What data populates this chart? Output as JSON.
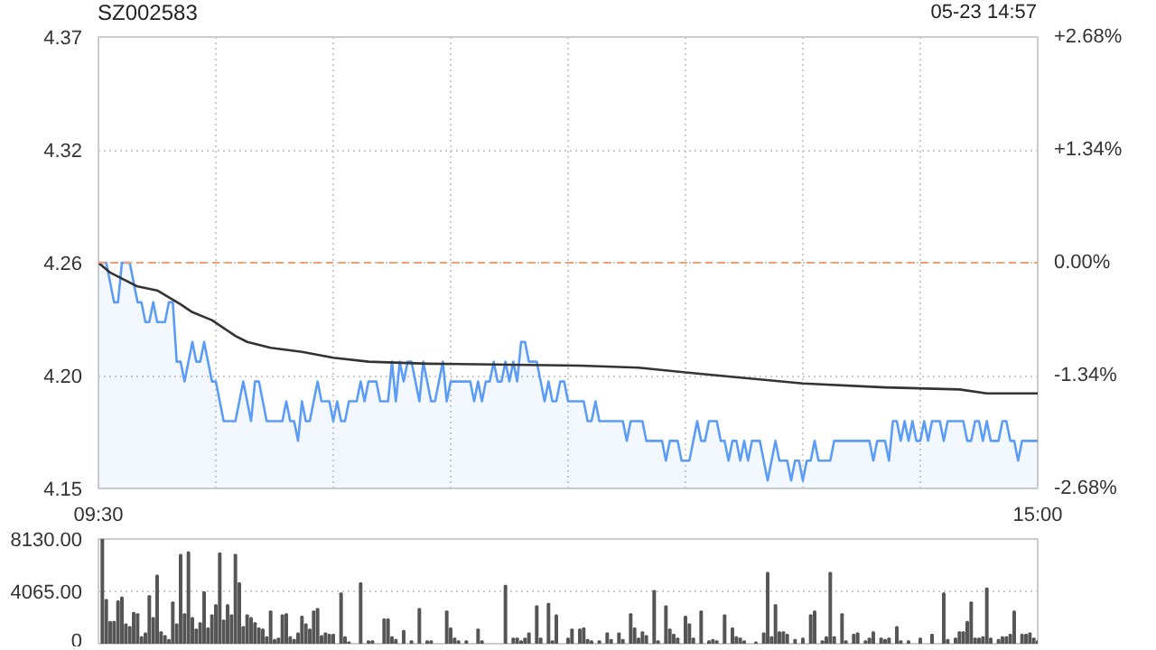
{
  "chart_data": [
    {
      "type": "line",
      "title": "SZ002583",
      "annotations": [
        "05-23 14:57"
      ],
      "categories": [
        "09:30",
        null,
        null,
        null,
        null,
        null,
        null,
        null,
        null,
        null,
        null,
        null,
        null,
        null,
        null,
        null,
        null,
        null,
        null,
        null,
        null,
        null,
        null,
        null,
        null,
        null,
        null,
        null,
        null,
        null,
        null,
        null,
        null,
        null,
        null,
        null,
        null,
        null,
        null,
        null,
        null,
        null,
        null,
        null,
        null,
        null,
        null,
        null,
        null,
        null,
        null,
        null,
        null,
        null,
        null,
        null,
        null,
        null,
        null,
        null,
        null,
        null,
        null,
        null,
        null,
        null,
        null,
        null,
        null,
        null,
        null,
        null,
        null,
        null,
        null,
        null,
        null,
        null,
        null,
        null,
        null,
        null,
        null,
        null,
        null,
        null,
        null,
        null,
        null,
        null,
        null,
        null,
        null,
        null,
        null,
        null,
        null,
        null,
        null,
        null,
        null,
        null,
        null,
        null,
        null,
        null,
        null,
        null,
        null,
        null,
        null,
        null,
        null,
        null,
        null,
        null,
        null,
        null,
        null,
        null,
        null,
        null,
        null,
        null,
        null,
        null,
        null,
        null,
        null,
        null,
        null,
        null,
        null,
        null,
        null,
        null,
        null,
        null,
        null,
        null,
        null,
        null,
        null,
        null,
        null,
        null,
        null,
        null,
        null,
        null,
        null,
        null,
        null,
        null,
        null,
        null,
        null,
        null,
        null,
        null,
        null,
        null,
        null,
        null,
        null,
        null,
        null,
        null,
        null,
        null,
        null,
        null,
        null,
        null,
        null,
        null,
        null,
        null,
        null,
        null,
        null,
        null,
        null,
        null,
        null,
        null,
        null,
        null,
        null,
        null,
        null,
        null,
        null,
        null,
        null,
        null,
        null,
        null,
        null,
        null,
        null,
        null,
        null,
        null,
        null,
        null,
        null,
        null,
        null,
        null,
        null,
        null,
        null,
        null,
        null,
        null,
        null,
        null,
        null,
        null,
        null,
        null,
        null,
        null,
        null,
        null,
        null,
        null,
        null,
        null,
        null,
        null,
        null,
        null,
        null,
        null,
        null,
        null,
        null,
        null,
        "15:00"
      ],
      "series": [
        {
          "type": "area",
          "color": "#5b9cf6",
          "values": [
            4.26,
            4.26,
            4.26,
            4.25,
            4.24,
            4.24,
            4.26,
            4.26,
            4.26,
            4.25,
            4.24,
            4.24,
            4.23,
            4.23,
            4.24,
            4.23,
            4.23,
            4.23,
            4.24,
            4.24,
            4.21,
            4.21,
            4.2,
            4.21,
            4.22,
            4.21,
            4.21,
            4.22,
            4.21,
            4.2,
            4.2,
            4.19,
            4.18,
            4.18,
            4.18,
            4.18,
            4.19,
            4.2,
            4.19,
            4.18,
            4.2,
            4.2,
            4.19,
            4.18,
            4.18,
            4.18,
            4.18,
            4.18,
            4.19,
            4.18,
            4.18,
            4.17,
            4.19,
            4.18,
            4.18,
            4.19,
            4.2,
            4.19,
            4.19,
            4.19,
            4.18,
            4.19,
            4.18,
            4.18,
            4.19,
            4.19,
            4.19,
            4.2,
            4.19,
            4.2,
            4.2,
            4.2,
            4.19,
            4.19,
            4.19,
            4.21,
            4.19,
            4.21,
            4.2,
            4.21,
            4.21,
            4.2,
            4.19,
            4.21,
            4.2,
            4.19,
            4.19,
            4.2,
            4.21,
            4.19,
            4.2,
            4.2,
            4.2,
            4.2,
            4.2,
            4.2,
            4.19,
            4.2,
            4.19,
            4.2,
            4.2,
            4.21,
            4.2,
            4.2,
            4.21,
            4.2,
            4.21,
            4.2,
            4.22,
            4.22,
            4.21,
            4.21,
            4.21,
            4.2,
            4.19,
            4.2,
            4.19,
            4.19,
            4.2,
            4.2,
            4.19,
            4.19,
            4.19,
            4.19,
            4.19,
            4.18,
            4.18,
            4.19,
            4.18,
            4.18,
            4.18,
            4.18,
            4.18,
            4.18,
            4.18,
            4.17,
            4.18,
            4.18,
            4.18,
            4.18,
            4.17,
            4.17,
            4.17,
            4.17,
            4.17,
            4.16,
            4.17,
            4.17,
            4.17,
            4.16,
            4.16,
            4.16,
            4.17,
            4.18,
            4.17,
            4.17,
            4.18,
            4.18,
            4.18,
            4.17,
            4.17,
            4.16,
            4.17,
            4.17,
            4.16,
            4.17,
            4.16,
            4.17,
            4.17,
            4.17,
            4.16,
            4.15,
            4.16,
            4.17,
            4.16,
            4.16,
            4.16,
            4.15,
            4.16,
            4.16,
            4.15,
            4.16,
            4.16,
            4.17,
            4.16,
            4.16,
            4.16,
            4.16,
            4.17,
            4.17,
            4.17,
            4.17,
            4.17,
            4.17,
            4.17,
            4.17,
            4.17,
            4.17,
            4.16,
            4.17,
            4.17,
            4.17,
            4.16,
            4.18,
            4.18,
            4.17,
            4.18,
            4.17,
            4.18,
            4.17,
            4.17,
            4.18,
            4.17,
            4.18,
            4.18,
            4.18,
            4.17,
            4.18,
            4.18,
            4.18,
            4.18,
            4.18,
            4.17,
            4.17,
            4.18,
            4.18,
            4.17,
            4.18,
            4.17,
            4.17,
            4.17,
            4.18,
            4.18,
            4.17,
            4.17,
            4.16,
            4.17,
            4.17,
            4.17,
            4.17,
            4.17
          ]
        },
        {
          "type": "line",
          "color": "#333333",
          "values": [
            4.26,
            null,
            null,
            4.255,
            null,
            null,
            4.252,
            null,
            null,
            null,
            4.248,
            null,
            null,
            null,
            null,
            4.246,
            null,
            null,
            null,
            null,
            null,
            4.239,
            null,
            null,
            4.235,
            null,
            null,
            null,
            null,
            4.231,
            null,
            null,
            null,
            null,
            null,
            4.223,
            null,
            null,
            4.22,
            null,
            null,
            null,
            null,
            null,
            4.217,
            null,
            null,
            null,
            null,
            null,
            null,
            null,
            4.215,
            null,
            null,
            null,
            null,
            null,
            null,
            null,
            4.212,
            null,
            null,
            null,
            null,
            null,
            null,
            null,
            null,
            4.21,
            null,
            null,
            null,
            null,
            null,
            null,
            null,
            null,
            null,
            null,
            null,
            null,
            null,
            null,
            4.209,
            null,
            null,
            null,
            null,
            null,
            null,
            null,
            null,
            null,
            null,
            null,
            null,
            null,
            null,
            null,
            null,
            null,
            null,
            null,
            null,
            null,
            null,
            null,
            null,
            null,
            null,
            null,
            null,
            null,
            null,
            null,
            null,
            null,
            null,
            null,
            null,
            null,
            null,
            4.208,
            null,
            null,
            null,
            null,
            null,
            null,
            null,
            null,
            null,
            null,
            null,
            null,
            null,
            null,
            4.207,
            null,
            null,
            null,
            null,
            null,
            null,
            null,
            null,
            null,
            null,
            null,
            null,
            null,
            null,
            4.204,
            null,
            null,
            null,
            null,
            null,
            null,
            null,
            null,
            null,
            null,
            4.202,
            null,
            null,
            null,
            null,
            null,
            null,
            null,
            null,
            null,
            null,
            null,
            null,
            null,
            null,
            null,
            4.199,
            null,
            null,
            null,
            null,
            null,
            null,
            null,
            null,
            null,
            null,
            null,
            null,
            null,
            null,
            null,
            null,
            null,
            null,
            null,
            null,
            4.197,
            null,
            null,
            null,
            null,
            null,
            null,
            null,
            null,
            null,
            null,
            null,
            null,
            null,
            null,
            null,
            null,
            null,
            null,
            4.196,
            null,
            null,
            null,
            null,
            null,
            null,
            4.194,
            null,
            null,
            null,
            null,
            null,
            null,
            null,
            null,
            null,
            null,
            null,
            null,
            4.194
          ]
        }
      ],
      "ylim": [
        4.146,
        4.374
      ],
      "yticks": [
        {
          "value": 4.146,
          "label": "4.15"
        },
        {
          "value": 4.203,
          "label": "4.20"
        },
        {
          "value": 4.26,
          "label": "4.26"
        },
        {
          "value": 4.317,
          "label": "4.32"
        },
        {
          "value": 4.374,
          "label": "4.37"
        }
      ],
      "y2lim": [
        -2.68,
        2.68
      ],
      "y2ticks": [
        {
          "value": -2.68,
          "label": "-2.68%"
        },
        {
          "value": -1.34,
          "label": "-1.34%"
        },
        {
          "value": 0,
          "label": "0.00%"
        },
        {
          "value": 1.34,
          "label": "+1.34%"
        },
        {
          "value": 2.68,
          "label": "+2.68%"
        }
      ],
      "ref_lines": [
        {
          "axis": "y",
          "value": 4.26,
          "color": "#f0a070",
          "line_style": "dashed"
        }
      ],
      "grid": true,
      "line_style": "solid"
    },
    {
      "type": "bar",
      "color": "#555555",
      "categories": [
        null,
        null,
        null,
        null,
        null,
        null,
        null,
        null,
        null,
        null,
        null,
        null,
        null,
        null,
        null,
        null,
        null,
        null,
        null,
        null,
        null,
        null,
        null,
        null,
        null,
        null,
        null,
        null,
        null,
        null,
        null,
        null,
        null,
        null,
        null,
        null,
        null,
        null,
        null,
        null,
        null,
        null,
        null,
        null,
        null,
        null,
        null,
        null,
        null,
        null,
        null,
        null,
        null,
        null,
        null,
        null,
        null,
        null,
        null,
        null,
        null,
        null,
        null,
        null,
        null,
        null,
        null,
        null,
        null,
        null,
        null,
        null,
        null,
        null,
        null,
        null,
        null,
        null,
        null,
        null,
        null,
        null,
        null,
        null,
        null,
        null,
        null,
        null,
        null,
        null,
        null,
        null,
        null,
        null,
        null,
        null,
        null,
        null,
        null,
        null,
        null,
        null,
        null,
        null,
        null,
        null,
        null,
        null,
        null,
        null,
        null,
        null,
        null,
        null,
        null,
        null,
        null,
        null,
        null,
        null,
        null,
        null,
        null,
        null,
        null,
        null,
        null,
        null,
        null,
        null,
        null,
        null,
        null,
        null,
        null,
        null,
        null,
        null,
        null,
        null,
        null,
        null,
        null,
        null,
        null,
        null,
        null,
        null,
        null,
        null,
        null,
        null,
        null,
        null,
        null,
        null,
        null,
        null,
        null,
        null,
        null,
        null,
        null,
        null,
        null,
        null,
        null,
        null,
        null,
        null,
        null,
        null,
        null,
        null,
        null,
        null,
        null,
        null,
        null,
        null,
        null,
        null,
        null,
        null,
        null,
        null,
        null,
        null,
        null,
        null,
        null,
        null,
        null,
        null,
        null,
        null,
        null,
        null,
        null,
        null,
        null,
        null,
        null,
        null,
        null,
        null,
        null,
        null,
        null,
        null,
        null,
        null,
        null,
        null,
        null,
        null,
        null,
        null,
        null,
        null,
        null,
        null,
        null,
        null,
        null,
        null,
        null,
        null,
        null,
        null,
        null,
        null,
        null,
        null,
        null,
        null,
        null,
        null,
        null,
        null,
        null
      ],
      "values": [
        null,
        8100,
        3400,
        1700,
        1700,
        3300,
        3600,
        1500,
        1300,
        2400,
        2300,
        500,
        800,
        3700,
        2000,
        5300,
        900,
        600,
        300,
        3200,
        1500,
        6900,
        2300,
        7100,
        2000,
        1100,
        1600,
        4000,
        1200,
        2200,
        3000,
        7000,
        1800,
        3000,
        2200,
        6900,
        4700,
        1300,
        2200,
        2000,
        1600,
        1200,
        1100,
        500,
        2500,
        300,
        400,
        2200,
        2300,
        500,
        300,
        800,
        2100,
        1500,
        1100,
        2500,
        2700,
        600,
        800,
        700,
        700,
        null,
        3900,
        500,
        100,
        null,
        null,
        4700,
        null,
        200,
        200,
        null,
        null,
        1900,
        1900,
        500,
        300,
        null,
        1000,
        null,
        200,
        null,
        2700,
        null,
        200,
        200,
        null,
        null,
        null,
        2500,
        1200,
        400,
        200,
        null,
        200,
        null,
        null,
        1100,
        200,
        null,
        null,
        null,
        null,
        null,
        4500,
        null,
        400,
        400,
        200,
        400,
        800,
        null,
        2900,
        400,
        null,
        3100,
        200,
        2200,
        null,
        null,
        400,
        1100,
        null,
        1100,
        1200,
        300,
        200,
        null,
        200,
        null,
        800,
        300,
        null,
        800,
        300,
        null,
        2300,
        1200,
        400,
        900,
        600,
        null,
        4100,
        200,
        null,
        2900,
        1100,
        700,
        400,
        null,
        2100,
        1500,
        400,
        null,
        2500,
        null,
        200,
        300,
        200,
        null,
        2200,
        null,
        1200,
        500,
        400,
        200,
        null,
        null,
        100,
        null,
        800,
        5500,
        500,
        3000,
        900,
        900,
        700,
        null,
        300,
        null,
        400,
        null,
        2200,
        2500,
        null,
        200,
        500,
        5500,
        500,
        null,
        2300,
        200,
        null,
        700,
        800,
        null,
        200,
        400,
        900,
        null,
        400,
        300,
        400,
        null,
        1300,
        200,
        null,
        200,
        null,
        null,
        400,
        null,
        null,
        700,
        null,
        null,
        3900,
        300,
        null,
        400,
        900,
        900,
        1700,
        3200,
        400,
        400,
        500,
        4300,
        400,
        null,
        300,
        500,
        500,
        700,
        2500,
        null,
        700,
        700,
        800,
        400,
        200
      ],
      "ylim": [
        0,
        8130
      ],
      "yticks": [
        0,
        {
          "value": 4065,
          "label": "4065.00"
        },
        {
          "value": 8130,
          "label": "8130.00"
        }
      ],
      "grid": "y",
      "tick_labels": "y"
    }
  ]
}
